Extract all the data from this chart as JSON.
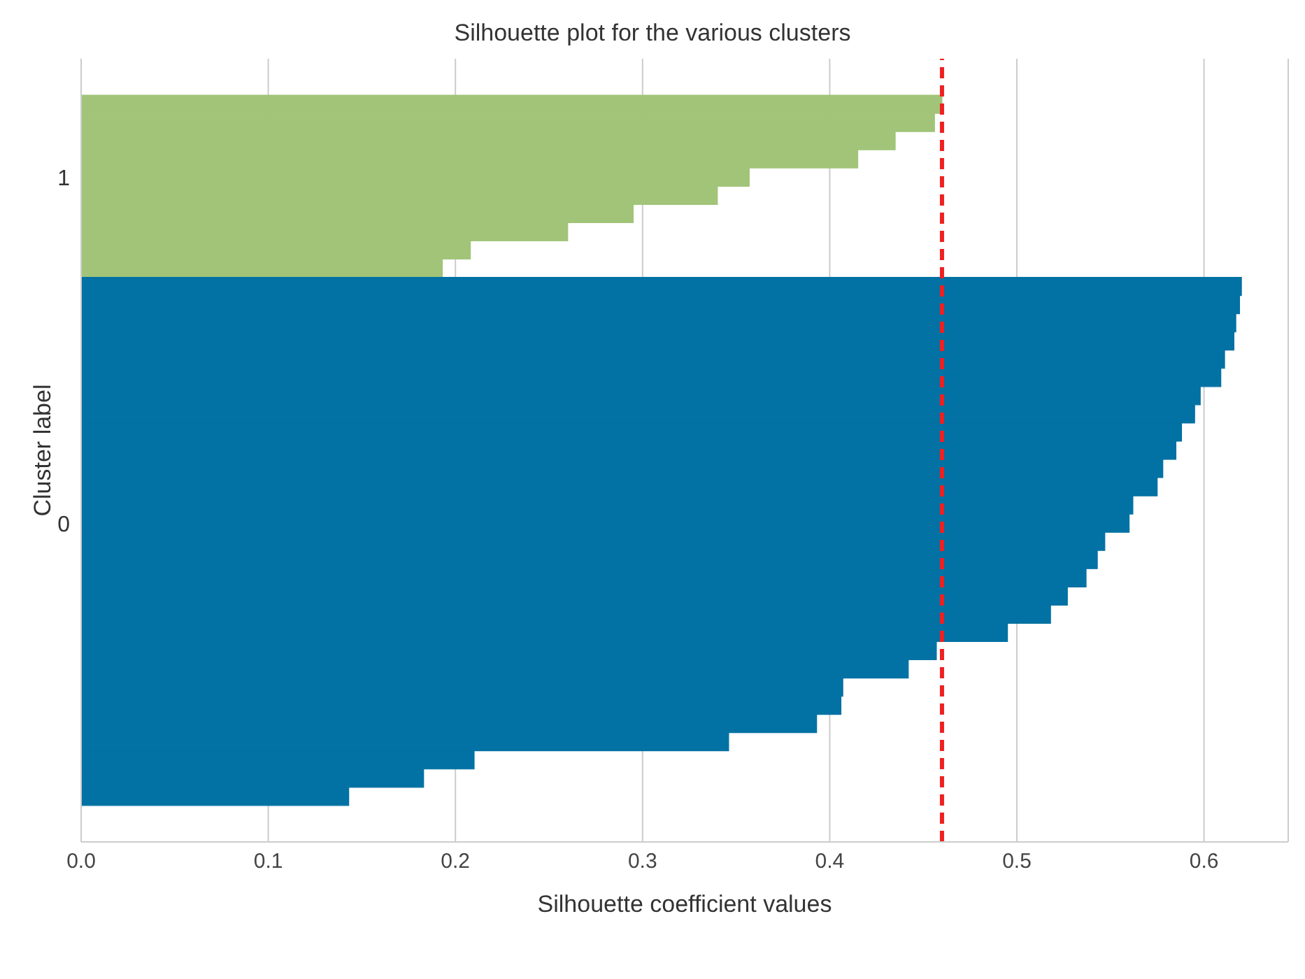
{
  "chart_data": {
    "type": "bar",
    "orientation": "horizontal",
    "title": "Silhouette plot for the various clusters",
    "xlabel": "Silhouette coefficient values",
    "ylabel": "Cluster label",
    "categories": [
      null,
      null,
      null,
      null,
      null,
      null,
      "1",
      null,
      null,
      null,
      null,
      null,
      null,
      null,
      null,
      null,
      null,
      null,
      null,
      null,
      null,
      null,
      null,
      null,
      null,
      "0",
      null,
      null,
      null,
      null,
      null,
      null,
      null,
      null,
      null,
      null,
      null,
      null,
      null,
      null,
      null,
      null,
      null
    ],
    "values": [
      null,
      null,
      0.46,
      0.456,
      0.435,
      0.415,
      0.357,
      0.34,
      0.295,
      0.26,
      0.208,
      0.193,
      0.62,
      0.619,
      0.617,
      0.616,
      0.611,
      0.609,
      0.598,
      0.595,
      0.588,
      0.585,
      0.578,
      0.575,
      0.562,
      0.56,
      0.547,
      0.543,
      0.537,
      0.527,
      0.518,
      0.495,
      0.457,
      0.442,
      0.407,
      0.406,
      0.393,
      0.346,
      0.21,
      0.183,
      0.143,
      null,
      null
    ],
    "colors": [
      null,
      null,
      "#a1c479",
      "#a1c479",
      "#a1c479",
      "#a1c479",
      "#a1c479",
      "#a1c479",
      "#a1c479",
      "#a1c479",
      "#a1c479",
      "#a1c479",
      "#0271a3",
      "#0271a3",
      "#0271a3",
      "#0271a3",
      "#0271a3",
      "#0271a3",
      "#0271a3",
      "#0271a3",
      "#0271a3",
      "#0271a3",
      "#0271a3",
      "#0271a3",
      "#0271a3",
      "#0271a3",
      "#0271a3",
      "#0271a3",
      "#0271a3",
      "#0271a3",
      "#0271a3",
      "#0271a3",
      "#0271a3",
      "#0271a3",
      "#0271a3",
      "#0271a3",
      "#0271a3",
      "#0271a3",
      "#0271a3",
      "#0271a3",
      "#0271a3",
      null,
      null
    ],
    "xlim": [
      0,
      0.645
    ],
    "xticks": [
      {
        "value": 0,
        "label": "0.0"
      },
      0.1,
      0.2,
      0.3,
      0.4,
      0.5,
      0.6
    ],
    "ref_lines": [
      {
        "axis": "x",
        "value": 0.46,
        "color": "#f02020",
        "line_style": "dashed"
      }
    ],
    "grid": "x"
  }
}
